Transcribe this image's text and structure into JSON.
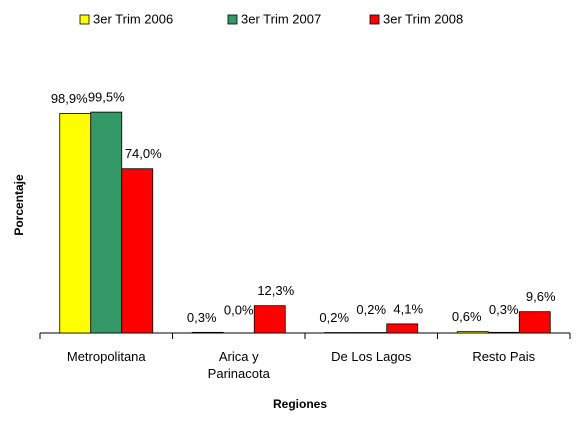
{
  "chart_data": {
    "type": "bar",
    "x_label": "Regiones",
    "y_label": "Porcentaje",
    "categories": [
      "Metropolitana",
      "Arica y Parinacota",
      "De Los Lagos",
      "Resto Pais"
    ],
    "series": [
      {
        "name": "3er Trim 2006",
        "color": "#ffff00",
        "values": [
          98.9,
          0.3,
          0.2,
          0.6
        ],
        "value_labels": [
          "98,9%",
          "0,3%",
          "0,2%",
          "0,6%"
        ]
      },
      {
        "name": "3er Trim 2007",
        "color": "#339966",
        "values": [
          99.5,
          0.0,
          0.2,
          0.3
        ],
        "value_labels": [
          "99,5%",
          "0,0%",
          "0,2%",
          "0,3%"
        ]
      },
      {
        "name": "3er Trim 2008",
        "color": "#ff0000",
        "values": [
          74.0,
          12.3,
          4.1,
          9.6
        ],
        "value_labels": [
          "74,0%",
          "12,3%",
          "4,1%",
          "9,6%"
        ]
      }
    ],
    "ylim": [
      0,
      100
    ],
    "legend": "top"
  }
}
